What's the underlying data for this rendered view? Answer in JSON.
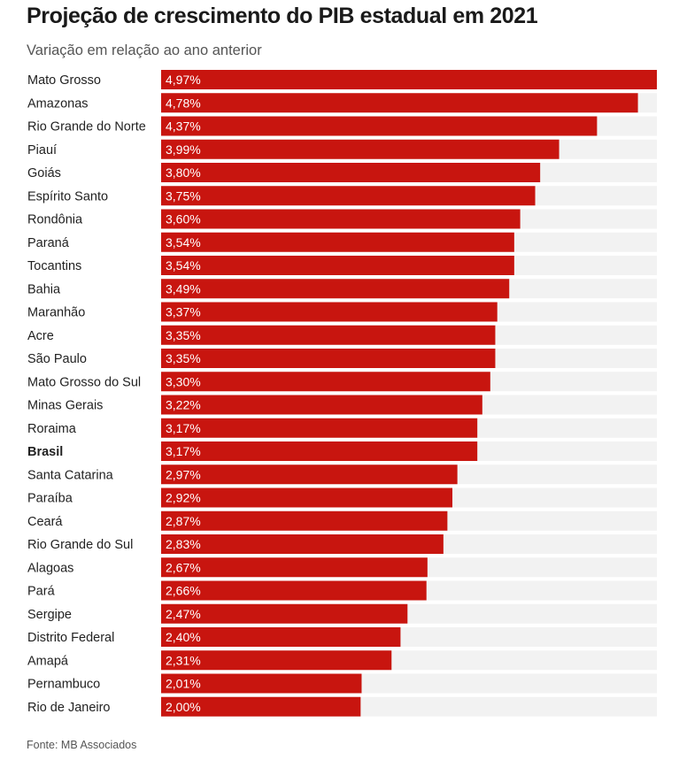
{
  "header": {
    "title": "Projeção de crescimento do PIB estadual em 2021",
    "subtitle": "Variação em relação ao ano anterior"
  },
  "footer": {
    "source": "Fonte: MB Associados"
  },
  "colors": {
    "bar": "#c8150f",
    "track": "#f2f2f2",
    "label_on_bar": "#ffffff",
    "category_text": "#222222"
  },
  "chart_data": {
    "type": "bar",
    "orientation": "horizontal",
    "title": "Projeção de crescimento do PIB estadual em 2021",
    "subtitle": "Variação em relação ao ano anterior",
    "unit": "%",
    "xlim": [
      0,
      4.97
    ],
    "grid": false,
    "legend": "none",
    "highlighted_categories": [
      "Brasil"
    ],
    "categories": [
      "Mato Grosso",
      "Amazonas",
      "Rio Grande do Norte",
      "Piauí",
      "Goiás",
      "Espírito Santo",
      "Rondônia",
      "Paraná",
      "Tocantins",
      "Bahia",
      "Maranhão",
      "Acre",
      "São Paulo",
      "Mato Grosso do Sul",
      "Minas Gerais",
      "Roraima",
      "Brasil",
      "Santa Catarina",
      "Paraíba",
      "Ceará",
      "Rio Grande do Sul",
      "Alagoas",
      "Pará",
      "Sergipe",
      "Distrito Federal",
      "Amapá",
      "Pernambuco",
      "Rio de Janeiro"
    ],
    "values": [
      4.97,
      4.78,
      4.37,
      3.99,
      3.8,
      3.75,
      3.6,
      3.54,
      3.54,
      3.49,
      3.37,
      3.35,
      3.35,
      3.3,
      3.22,
      3.17,
      3.17,
      2.97,
      2.92,
      2.87,
      2.83,
      2.67,
      2.66,
      2.47,
      2.4,
      2.31,
      2.01,
      2.0
    ],
    "value_labels": [
      "4,97%",
      "4,78%",
      "4,37%",
      "3,99%",
      "3,80%",
      "3,75%",
      "3,60%",
      "3,54%",
      "3,54%",
      "3,49%",
      "3,37%",
      "3,35%",
      "3,35%",
      "3,30%",
      "3,22%",
      "3,17%",
      "3,17%",
      "2,97%",
      "2,92%",
      "2,87%",
      "2,83%",
      "2,67%",
      "2,66%",
      "2,47%",
      "2,40%",
      "2,31%",
      "2,01%",
      "2,00%"
    ],
    "source": "Fonte: MB Associados"
  }
}
